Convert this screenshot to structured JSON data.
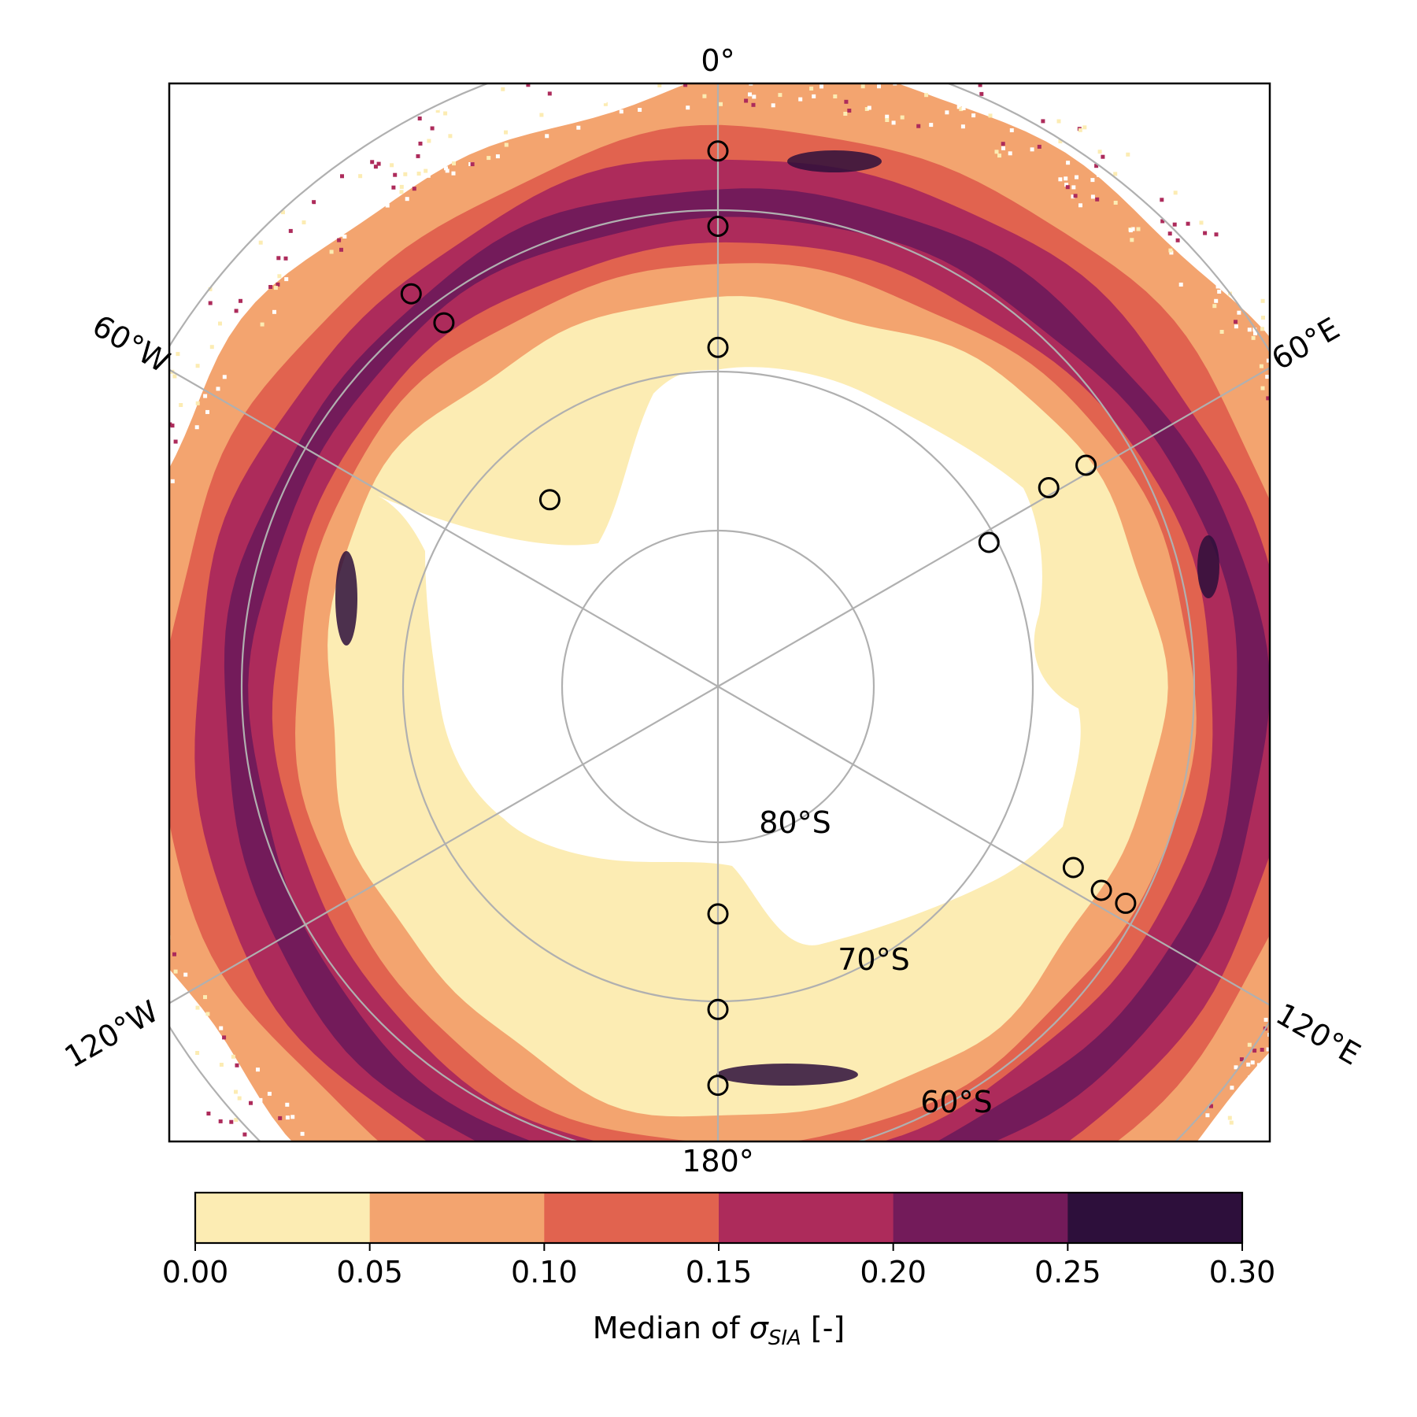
{
  "map": {
    "projection": "south-polar-stereographic",
    "meridian_labels": {
      "m0": "0°",
      "m60e": "60°E",
      "m120e": "120°E",
      "m180": "180°",
      "m120w": "120°W",
      "m60w": "60°W"
    },
    "parallel_labels": {
      "p80": "80°S",
      "p70": "70°S",
      "p60": "60°S"
    },
    "colors": {
      "grid": "#b0b0b0",
      "marker_edge": "#000000"
    },
    "classes": [
      "#fcecb3",
      "#f3a46f",
      "#e1634f",
      "#ad2b5b",
      "#731b5a",
      "#2d0f3b"
    ],
    "sea_ice_ring": {
      "description_levels": "median sigma_SIA classes 0.00-0.30 in 0.05 steps"
    },
    "markers": [
      {
        "lon": 0,
        "lat": -56.5
      },
      {
        "lon": 0,
        "lat": -61.0
      },
      {
        "lon": 0,
        "lat": -68.5
      },
      {
        "lon": -42,
        "lat": -74.0
      },
      {
        "lon": -38,
        "lat": -58.7
      },
      {
        "lon": -37,
        "lat": -61.3
      },
      {
        "lon": 62,
        "lat": -70.5
      },
      {
        "lon": 59,
        "lat": -65.6
      },
      {
        "lon": 59,
        "lat": -62.9
      },
      {
        "lon": 117,
        "lat": -64.8
      },
      {
        "lon": 118,
        "lat": -62.6
      },
      {
        "lon": 118,
        "lat": -60.9
      },
      {
        "lon": 180,
        "lat": -75.5
      },
      {
        "lon": 180,
        "lat": -69.5
      },
      {
        "lon": 180,
        "lat": -64.8
      }
    ]
  },
  "colorbar": {
    "ticks": [
      "0.00",
      "0.05",
      "0.10",
      "0.15",
      "0.20",
      "0.25",
      "0.30"
    ],
    "label_prefix": "Median of ",
    "label_symbol": "σ",
    "label_subscript": "SIA",
    "label_suffix": " [-]",
    "range": [
      0.0,
      0.3
    ]
  }
}
